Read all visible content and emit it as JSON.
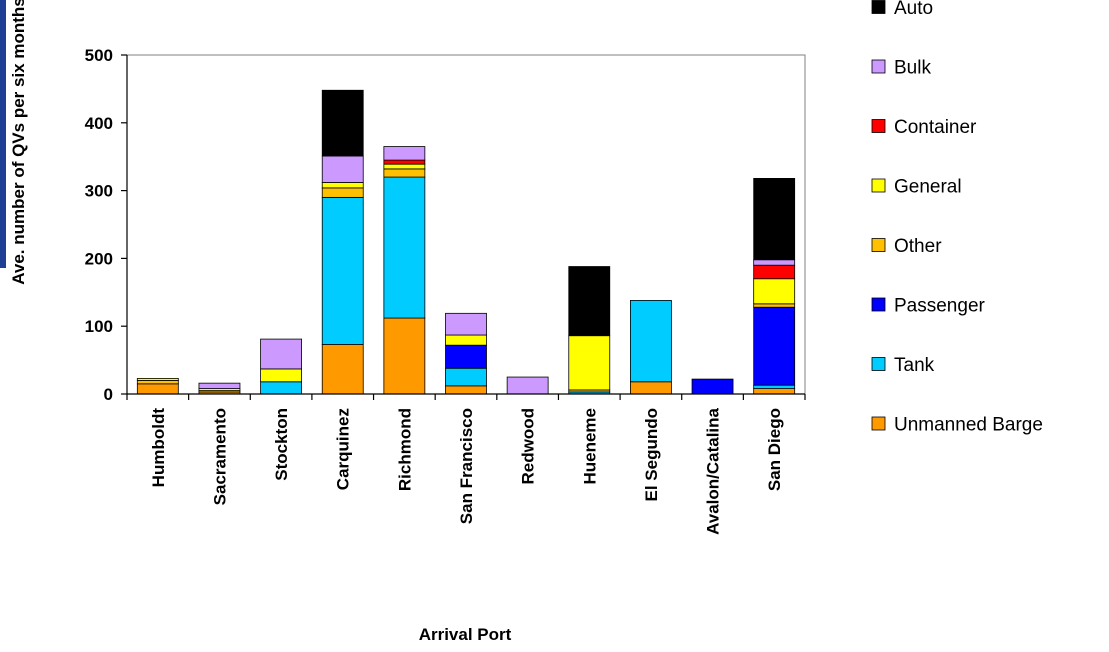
{
  "chart_data": {
    "type": "bar",
    "stacked": true,
    "title": "",
    "xlabel": "Arrival Port",
    "ylabel": "Ave. number of QVs per six months",
    "ylim": [
      0,
      500
    ],
    "yticks": [
      0,
      100,
      200,
      300,
      400,
      500
    ],
    "grid": false,
    "legend_position": "right",
    "categories": [
      "Humboldt",
      "Sacramento",
      "Stockton",
      "Carquinez",
      "Richmond",
      "San Francisco",
      "Redwood",
      "Hueneme",
      "El Segundo",
      "Avalon/Catalina",
      "San Diego"
    ],
    "series": [
      {
        "name": "Unmanned Barge",
        "color": "#ff9900",
        "values": [
          15,
          3,
          0,
          73,
          112,
          12,
          0,
          0,
          18,
          0,
          8
        ]
      },
      {
        "name": "Tank",
        "color": "#00ccff",
        "values": [
          0,
          0,
          18,
          217,
          208,
          26,
          0,
          3,
          120,
          0,
          5
        ]
      },
      {
        "name": "Passenger",
        "color": "#0000ff",
        "values": [
          0,
          0,
          0,
          0,
          0,
          34,
          0,
          0,
          0,
          22,
          115
        ]
      },
      {
        "name": "Other",
        "color": "#ffc000",
        "values": [
          5,
          2,
          0,
          14,
          12,
          0,
          0,
          3,
          0,
          0,
          5
        ]
      },
      {
        "name": "General",
        "color": "#ffff00",
        "values": [
          3,
          3,
          19,
          8,
          7,
          15,
          0,
          80,
          0,
          0,
          37
        ]
      },
      {
        "name": "Container",
        "color": "#ff0000",
        "values": [
          0,
          0,
          0,
          0,
          6,
          0,
          0,
          0,
          0,
          0,
          20
        ]
      },
      {
        "name": "Bulk",
        "color": "#cc99ff",
        "values": [
          0,
          8,
          44,
          39,
          20,
          32,
          25,
          0,
          0,
          0,
          8
        ]
      },
      {
        "name": "Auto",
        "color": "#000000",
        "values": [
          0,
          0,
          0,
          97,
          0,
          0,
          0,
          102,
          0,
          0,
          120
        ]
      }
    ],
    "legend_order": [
      "Auto",
      "Bulk",
      "Container",
      "General",
      "Other",
      "Passenger",
      "Tank",
      "Unmanned Barge"
    ]
  }
}
